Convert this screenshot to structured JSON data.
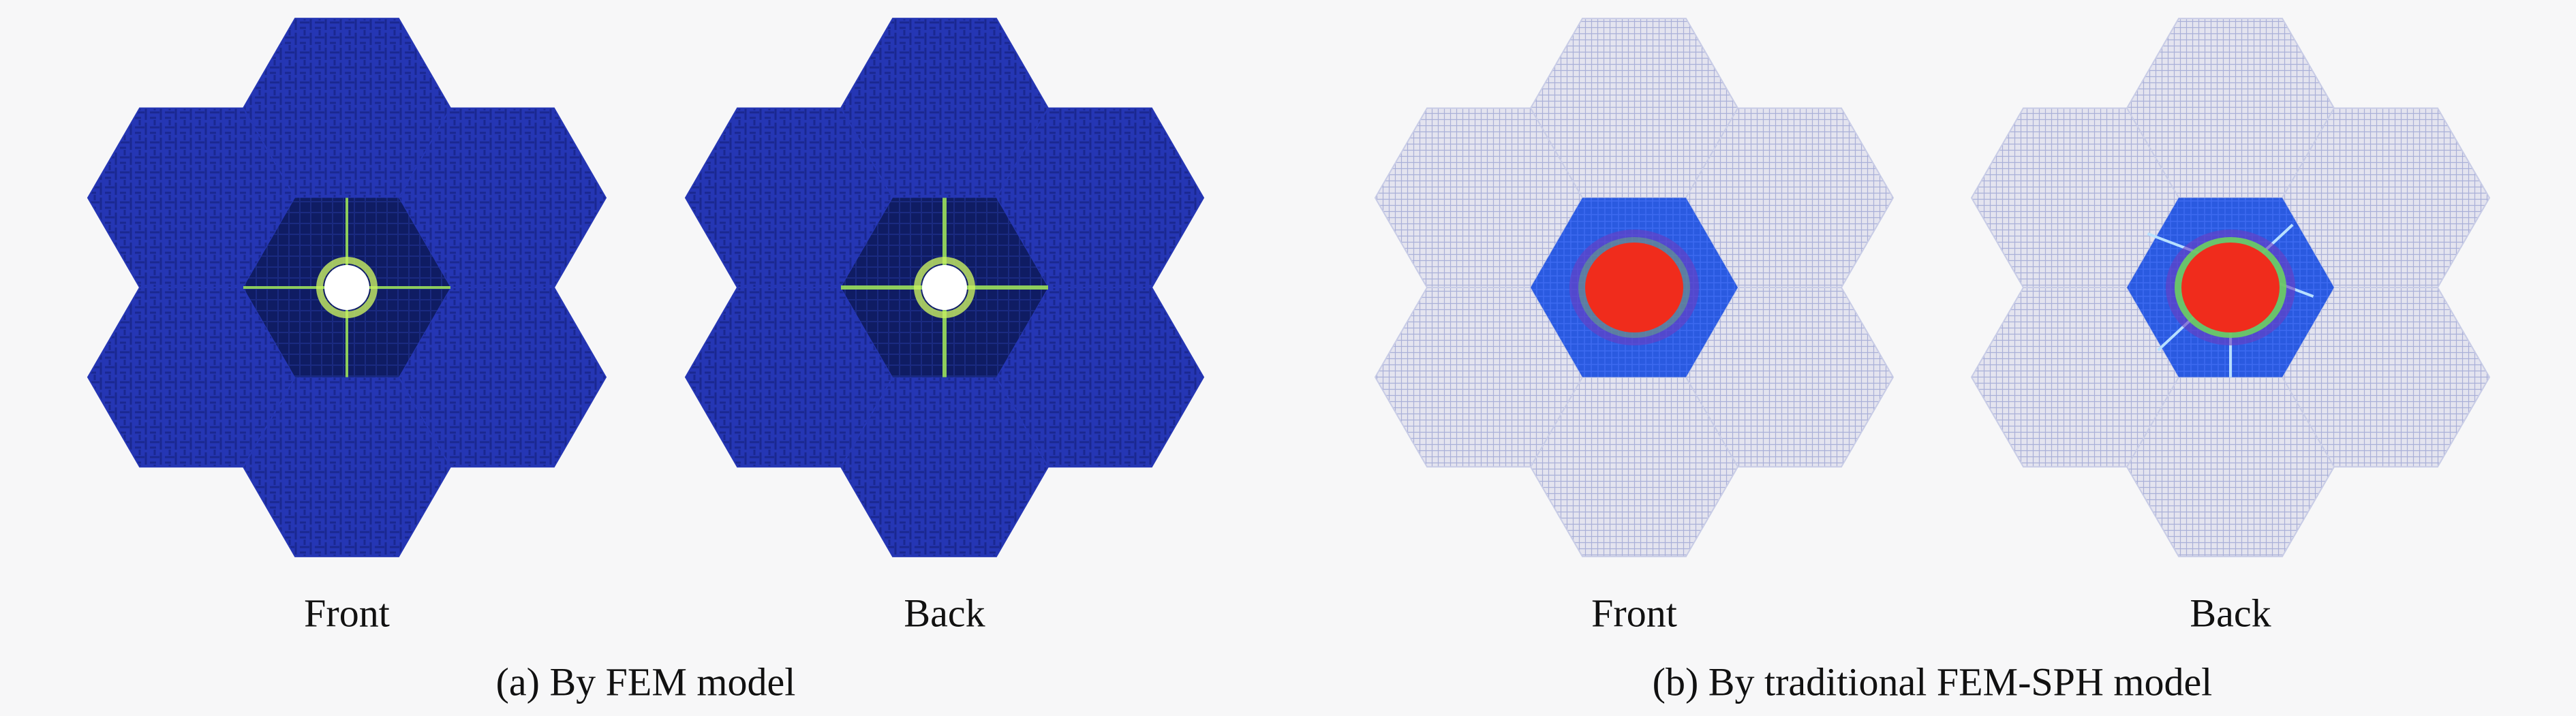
{
  "panels": [
    {
      "caption": "(a) By FEM model",
      "views": [
        {
          "label": "Front"
        },
        {
          "label": "Back"
        }
      ]
    },
    {
      "caption": "(b) By traditional FEM-SPH model",
      "views": [
        {
          "label": "Front"
        },
        {
          "label": "Back"
        }
      ]
    }
  ]
}
